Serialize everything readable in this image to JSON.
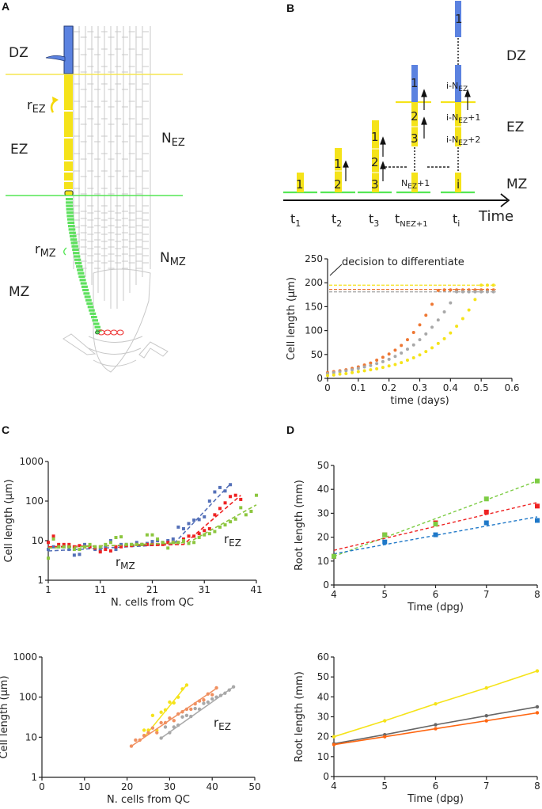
{
  "panels": {
    "A": {
      "letter": "A",
      "zones": [
        "DZ",
        "EZ",
        "MZ"
      ],
      "rates": {
        "ez": "r",
        "ez_sub": "EZ",
        "mz": "r",
        "mz_sub": "MZ"
      },
      "counts": {
        "ez": "N",
        "ez_sub": "EZ",
        "mz": "N",
        "mz_sub": "MZ"
      },
      "colors": {
        "dz_cell": "#5b82e0",
        "ez_cell": "#f5e31a",
        "mz_cell": "#5ee05e",
        "qc_cells": "#ee3333",
        "dz_boundary": "#f5e650",
        "mz_boundary": "#55e655"
      }
    },
    "B": {
      "letter": "B",
      "zones": [
        "DZ",
        "EZ",
        "MZ"
      ],
      "time_label": "Time",
      "time_points": [
        {
          "main": "t",
          "sub": "1"
        },
        {
          "main": "t",
          "sub": "2"
        },
        {
          "main": "t",
          "sub": "3"
        },
        {
          "main": "t",
          "sub": "NEZ+1"
        },
        {
          "main": "t",
          "sub": "i"
        }
      ],
      "stacks": [
        [
          "1"
        ],
        [
          "1",
          "2"
        ],
        [
          "1",
          "2",
          "3"
        ],
        [
          "1",
          "2",
          "3",
          "NEZ+1"
        ],
        [
          "1",
          "i-NEZ",
          "i-NEZ+1",
          "i-NEZ+2",
          "i"
        ]
      ],
      "stack_labels": {
        "nez1_main": "N",
        "nez1_sub": "EZ",
        "nez1_tail": "+1",
        "inez_pre": "i-N",
        "inez_sub": "EZ",
        "inez1_tail": "+1",
        "inez2_tail": "+2",
        "i": "i",
        "one": "1",
        "two": "2",
        "three": "3"
      },
      "colors": {
        "dz": "#5b82e0",
        "ez": "#f5e31a",
        "mz": "#55e655"
      }
    },
    "C": {
      "letter": "C"
    },
    "D": {
      "letter": "D"
    }
  },
  "chart_data": [
    {
      "id": "B-inset",
      "type": "scatter",
      "title": "",
      "annotation": "decision to differentiate",
      "xlabel": "time (days)",
      "ylabel": "Cell length (µm)",
      "xlim": [
        0,
        0.6
      ],
      "ylim": [
        0,
        250
      ],
      "xticks": [
        "0",
        "0.1",
        "0.2",
        "0.3",
        "0.4",
        "0.5",
        "0.6"
      ],
      "yticks": [
        "0",
        "50",
        "100",
        "150",
        "200",
        "250"
      ],
      "thresholds": [
        {
          "name": "yellow",
          "value": 195,
          "color": "#f5e31a"
        },
        {
          "name": "orange",
          "value": 186,
          "color": "#ee7733"
        },
        {
          "name": "gray",
          "value": 181,
          "color": "#aaaaaa"
        }
      ],
      "series": [
        {
          "name": "orange",
          "color": "#ee7733",
          "x": [
            0,
            0.02,
            0.04,
            0.06,
            0.08,
            0.1,
            0.12,
            0.14,
            0.16,
            0.18,
            0.2,
            0.22,
            0.24,
            0.26,
            0.28,
            0.3,
            0.32,
            0.34,
            0.36,
            0.38,
            0.4,
            0.42,
            0.44,
            0.46,
            0.48,
            0.5,
            0.52,
            0.54
          ],
          "y": [
            12,
            14,
            16,
            18,
            21,
            24,
            28,
            32,
            38,
            44,
            51,
            59,
            69,
            81,
            96,
            112,
            132,
            155,
            184,
            185,
            185,
            185,
            185,
            185,
            185,
            185,
            185,
            185
          ]
        },
        {
          "name": "gray",
          "color": "#a8a8a8",
          "x": [
            0,
            0.02,
            0.04,
            0.06,
            0.08,
            0.1,
            0.12,
            0.14,
            0.16,
            0.18,
            0.2,
            0.22,
            0.24,
            0.26,
            0.28,
            0.3,
            0.32,
            0.34,
            0.36,
            0.38,
            0.4,
            0.42,
            0.44,
            0.46,
            0.48,
            0.5,
            0.52,
            0.54
          ],
          "y": [
            10,
            12,
            14,
            16,
            18,
            21,
            24,
            27,
            31,
            35,
            40,
            46,
            53,
            61,
            70,
            81,
            93,
            107,
            122,
            139,
            158,
            181,
            181,
            181,
            181,
            181,
            181,
            181
          ]
        },
        {
          "name": "yellow",
          "color": "#f5e31a",
          "x": [
            0,
            0.02,
            0.04,
            0.06,
            0.08,
            0.1,
            0.12,
            0.14,
            0.16,
            0.18,
            0.2,
            0.22,
            0.24,
            0.26,
            0.28,
            0.3,
            0.32,
            0.34,
            0.36,
            0.38,
            0.4,
            0.42,
            0.44,
            0.46,
            0.48,
            0.5,
            0.52,
            0.54
          ],
          "y": [
            6,
            7,
            9,
            10,
            12,
            14,
            16,
            18,
            20,
            23,
            26,
            29,
            33,
            38,
            43,
            49,
            56,
            64,
            73,
            83,
            95,
            109,
            125,
            143,
            165,
            195,
            195,
            195
          ]
        }
      ]
    },
    {
      "id": "C-top",
      "type": "scatter",
      "xlabel": "N. cells from QC",
      "ylabel": "Cell length (µm)",
      "xscale": "linear",
      "yscale": "log",
      "xlim": [
        1,
        41
      ],
      "ylim": [
        1,
        1000
      ],
      "xticks": [
        "1",
        "11",
        "21",
        "31",
        "41"
      ],
      "yticks": [
        "1",
        "10",
        "100",
        "1000"
      ],
      "annotations": [
        {
          "text": "r",
          "sub": "MZ"
        },
        {
          "text": "r",
          "sub": "EZ"
        }
      ],
      "series": [
        {
          "name": "blue",
          "color": "#5470b8",
          "x": [
            1,
            2,
            3,
            4,
            5,
            6,
            7,
            8,
            9,
            10,
            11,
            12,
            13,
            14,
            15,
            16,
            17,
            18,
            19,
            20,
            21,
            22,
            23,
            24,
            25,
            26,
            27,
            28,
            29,
            30,
            31,
            32,
            33,
            34,
            35,
            36
          ],
          "y": [
            6,
            7,
            7,
            7,
            6,
            4.3,
            4.5,
            8,
            7,
            6,
            5.8,
            7,
            10,
            6,
            8,
            8,
            8,
            9,
            8,
            8.5,
            9.5,
            10,
            9,
            10,
            11,
            22,
            20,
            27,
            33,
            34,
            40,
            100,
            170,
            220,
            180,
            260
          ],
          "trend": [
            [
              1,
              5.5
            ],
            [
              25,
              8
            ],
            [
              36,
              270
            ]
          ]
        },
        {
          "name": "red",
          "color": "#ee2222",
          "x": [
            1,
            2,
            3,
            4,
            5,
            6,
            7,
            8,
            9,
            10,
            11,
            12,
            13,
            14,
            15,
            16,
            17,
            18,
            19,
            20,
            21,
            22,
            23,
            24,
            25,
            26,
            27,
            28,
            29,
            30,
            31,
            32,
            33,
            34,
            35,
            36,
            37,
            38
          ],
          "y": [
            9,
            13,
            8,
            8,
            8,
            7,
            7.5,
            7,
            7,
            6.5,
            5.2,
            6,
            5.5,
            7,
            7,
            7.5,
            7.5,
            8,
            8,
            8,
            8,
            8,
            8,
            9,
            9,
            9,
            11,
            13,
            13,
            15,
            18,
            20,
            45,
            65,
            90,
            130,
            140,
            110
          ],
          "trend": [
            [
              1,
              7
            ],
            [
              27,
              8
            ],
            [
              38,
              140
            ]
          ]
        },
        {
          "name": "green",
          "color": "#8cc63f",
          "x": [
            1,
            2,
            3,
            4,
            5,
            6,
            7,
            8,
            9,
            10,
            11,
            12,
            13,
            14,
            15,
            16,
            17,
            18,
            19,
            20,
            21,
            22,
            23,
            24,
            25,
            26,
            27,
            28,
            29,
            30,
            31,
            32,
            33,
            34,
            35,
            36,
            37,
            38,
            39,
            40,
            41
          ],
          "y": [
            3.6,
            11,
            7,
            7,
            7,
            6,
            6,
            7,
            8,
            7,
            7,
            8,
            9,
            12,
            12.5,
            8,
            8,
            8,
            8,
            14,
            14,
            11,
            9,
            6.5,
            9,
            9,
            10,
            8.5,
            9,
            12,
            14,
            15,
            17,
            22,
            25,
            30,
            35,
            68,
            45,
            55,
            140
          ],
          "trend": [
            [
              1,
              6.5
            ],
            [
              28,
              9
            ],
            [
              41,
              80
            ]
          ]
        }
      ]
    },
    {
      "id": "C-bottom",
      "type": "line",
      "xlabel": "N. cells from QC",
      "ylabel": "Cell length (µm)",
      "xscale": "linear",
      "yscale": "log",
      "xlim": [
        0,
        50
      ],
      "ylim": [
        1,
        1000
      ],
      "xticks": [
        "0",
        "10",
        "20",
        "30",
        "40",
        "50"
      ],
      "yticks": [
        "1",
        "10",
        "100",
        "1000"
      ],
      "annotations": [
        {
          "text": "r",
          "sub": "EZ"
        }
      ],
      "series": [
        {
          "name": "yellow",
          "color": "#f5e31a",
          "x": [
            24,
            25,
            26,
            27,
            28,
            29,
            30,
            31,
            32,
            33,
            34
          ],
          "y": [
            15,
            15,
            35,
            15,
            42,
            48,
            75,
            72,
            100,
            160,
            200
          ],
          "trend": [
            [
              24,
              10
            ],
            [
              34,
              200
            ]
          ]
        },
        {
          "name": "orange",
          "color": "#f09060",
          "x": [
            21,
            22,
            23,
            24,
            25,
            26,
            27,
            28,
            29,
            30,
            31,
            32,
            33,
            34,
            35,
            36,
            37,
            38,
            39,
            40,
            41
          ],
          "y": [
            6,
            8.5,
            8.5,
            11,
            13,
            17,
            13,
            23,
            23,
            30,
            26,
            38,
            43,
            50,
            50,
            68,
            80,
            85,
            120,
            115,
            170
          ],
          "trend": [
            [
              21,
              6
            ],
            [
              41,
              165
            ]
          ]
        },
        {
          "name": "gray",
          "color": "#a8a8a8",
          "x": [
            28,
            29,
            30,
            31,
            32,
            33,
            34,
            35,
            36,
            37,
            38,
            39,
            40,
            41,
            42,
            43,
            44,
            45
          ],
          "y": [
            9.5,
            18,
            13,
            18,
            20,
            32,
            35,
            33,
            52,
            50,
            70,
            75,
            90,
            100,
            110,
            125,
            150,
            180
          ],
          "trend": [
            [
              28,
              9.5
            ],
            [
              45,
              180
            ]
          ]
        }
      ]
    },
    {
      "id": "D-top",
      "type": "scatter",
      "xlabel": "Time (dpg)",
      "ylabel": "Root length (mm)",
      "xlim": [
        4,
        8
      ],
      "ylim": [
        0,
        50
      ],
      "xticks": [
        "4",
        "5",
        "6",
        "7",
        "8"
      ],
      "yticks": [
        "0",
        "10",
        "20",
        "30",
        "40",
        "50"
      ],
      "series": [
        {
          "name": "green",
          "color": "#7dcc44",
          "x": [
            4,
            5,
            6,
            7,
            8
          ],
          "y": [
            12,
            21,
            25.5,
            36,
            43.5
          ],
          "trend": [
            [
              4,
              12
            ],
            [
              8,
              43.5
            ]
          ]
        },
        {
          "name": "red",
          "color": "#ee2222",
          "x": [
            4,
            5,
            6,
            7,
            8
          ],
          "y": [
            12,
            21,
            26,
            30.5,
            33
          ],
          "trend": [
            [
              4,
              14.5
            ],
            [
              8,
              34.5
            ]
          ]
        },
        {
          "name": "blue",
          "color": "#1f78c8",
          "x": [
            4,
            5,
            6,
            7,
            8
          ],
          "y": [
            12,
            18,
            21,
            26,
            27
          ],
          "trend": [
            [
              4,
              13
            ],
            [
              8,
              28.5
            ]
          ]
        }
      ]
    },
    {
      "id": "D-bottom",
      "type": "line",
      "xlabel": "Time (dpg)",
      "ylabel": "Root length (mm)",
      "xlim": [
        4,
        8
      ],
      "ylim": [
        0,
        60
      ],
      "xticks": [
        "4",
        "5",
        "6",
        "7",
        "8"
      ],
      "yticks": [
        "0",
        "10",
        "20",
        "30",
        "40",
        "50",
        "60"
      ],
      "series": [
        {
          "name": "yellow",
          "color": "#f5e31a",
          "x": [
            4,
            5,
            6,
            7,
            8
          ],
          "y": [
            20,
            28,
            36.5,
            44.5,
            53
          ]
        },
        {
          "name": "gray",
          "color": "#666666",
          "x": [
            4,
            5,
            6,
            7,
            8
          ],
          "y": [
            16.5,
            21,
            26,
            30.5,
            35
          ]
        },
        {
          "name": "orange",
          "color": "#ff6611",
          "x": [
            4,
            5,
            6,
            7,
            8
          ],
          "y": [
            16,
            20,
            24,
            28,
            32
          ]
        }
      ]
    }
  ]
}
